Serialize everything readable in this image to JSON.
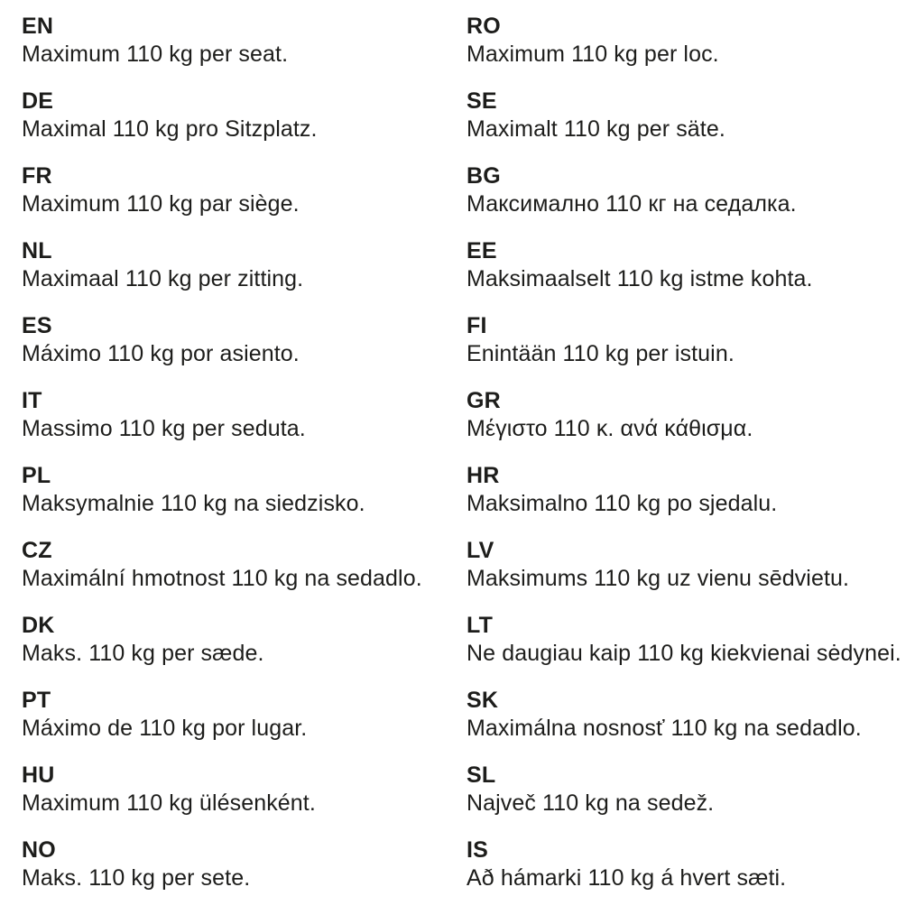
{
  "page": {
    "background_color": "#ffffff",
    "text_color": "#1d1d1b",
    "description": "Multilingual seat weight limit notice"
  },
  "columns": [
    {
      "entries": [
        {
          "code": "EN",
          "text": "Maximum 110 kg per seat."
        },
        {
          "code": "DE",
          "text": "Maximal 110 kg pro Sitzplatz."
        },
        {
          "code": "FR",
          "text": "Maximum 110 kg par siège."
        },
        {
          "code": "NL",
          "text": "Maximaal 110 kg per zitting."
        },
        {
          "code": "ES",
          "text": "Máximo 110 kg por asiento."
        },
        {
          "code": "IT",
          "text": "Massimo 110 kg per seduta."
        },
        {
          "code": "PL",
          "text": "Maksymalnie 110 kg na siedzisko."
        },
        {
          "code": "CZ",
          "text": "Maximální hmotnost 110 kg na sedadlo."
        },
        {
          "code": "DK",
          "text": "Maks. 110 kg per sæde."
        },
        {
          "code": "PT",
          "text": "Máximo de 110 kg por lugar."
        },
        {
          "code": "HU",
          "text": "Maximum 110 kg ülésenként."
        },
        {
          "code": "NO",
          "text": "Maks. 110 kg per sete."
        }
      ]
    },
    {
      "entries": [
        {
          "code": "RO",
          "text": "Maximum 110 kg per loc."
        },
        {
          "code": "SE",
          "text": "Maximalt 110 kg per säte."
        },
        {
          "code": "BG",
          "text": "Максимално 110 кг на седалка."
        },
        {
          "code": "EE",
          "text": "Maksimaalselt 110 kg istme kohta."
        },
        {
          "code": "FI",
          "text": "Enintään 110 kg per istuin."
        },
        {
          "code": "GR",
          "text": "Μέγιστο 110 κ. ανά κάθισμα."
        },
        {
          "code": "HR",
          "text": "Maksimalno 110 kg po sjedalu."
        },
        {
          "code": "LV",
          "text": "Maksimums 110 kg uz vienu sēdvietu."
        },
        {
          "code": "LT",
          "text": "Ne daugiau kaip 110 kg kiekvienai sėdynei."
        },
        {
          "code": "SK",
          "text": "Maximálna nosnosť 110 kg na sedadlo."
        },
        {
          "code": "SL",
          "text": "Največ 110 kg na sedež."
        },
        {
          "code": "IS",
          "text": "Að hámarki 110 kg á hvert sæti."
        }
      ]
    }
  ]
}
